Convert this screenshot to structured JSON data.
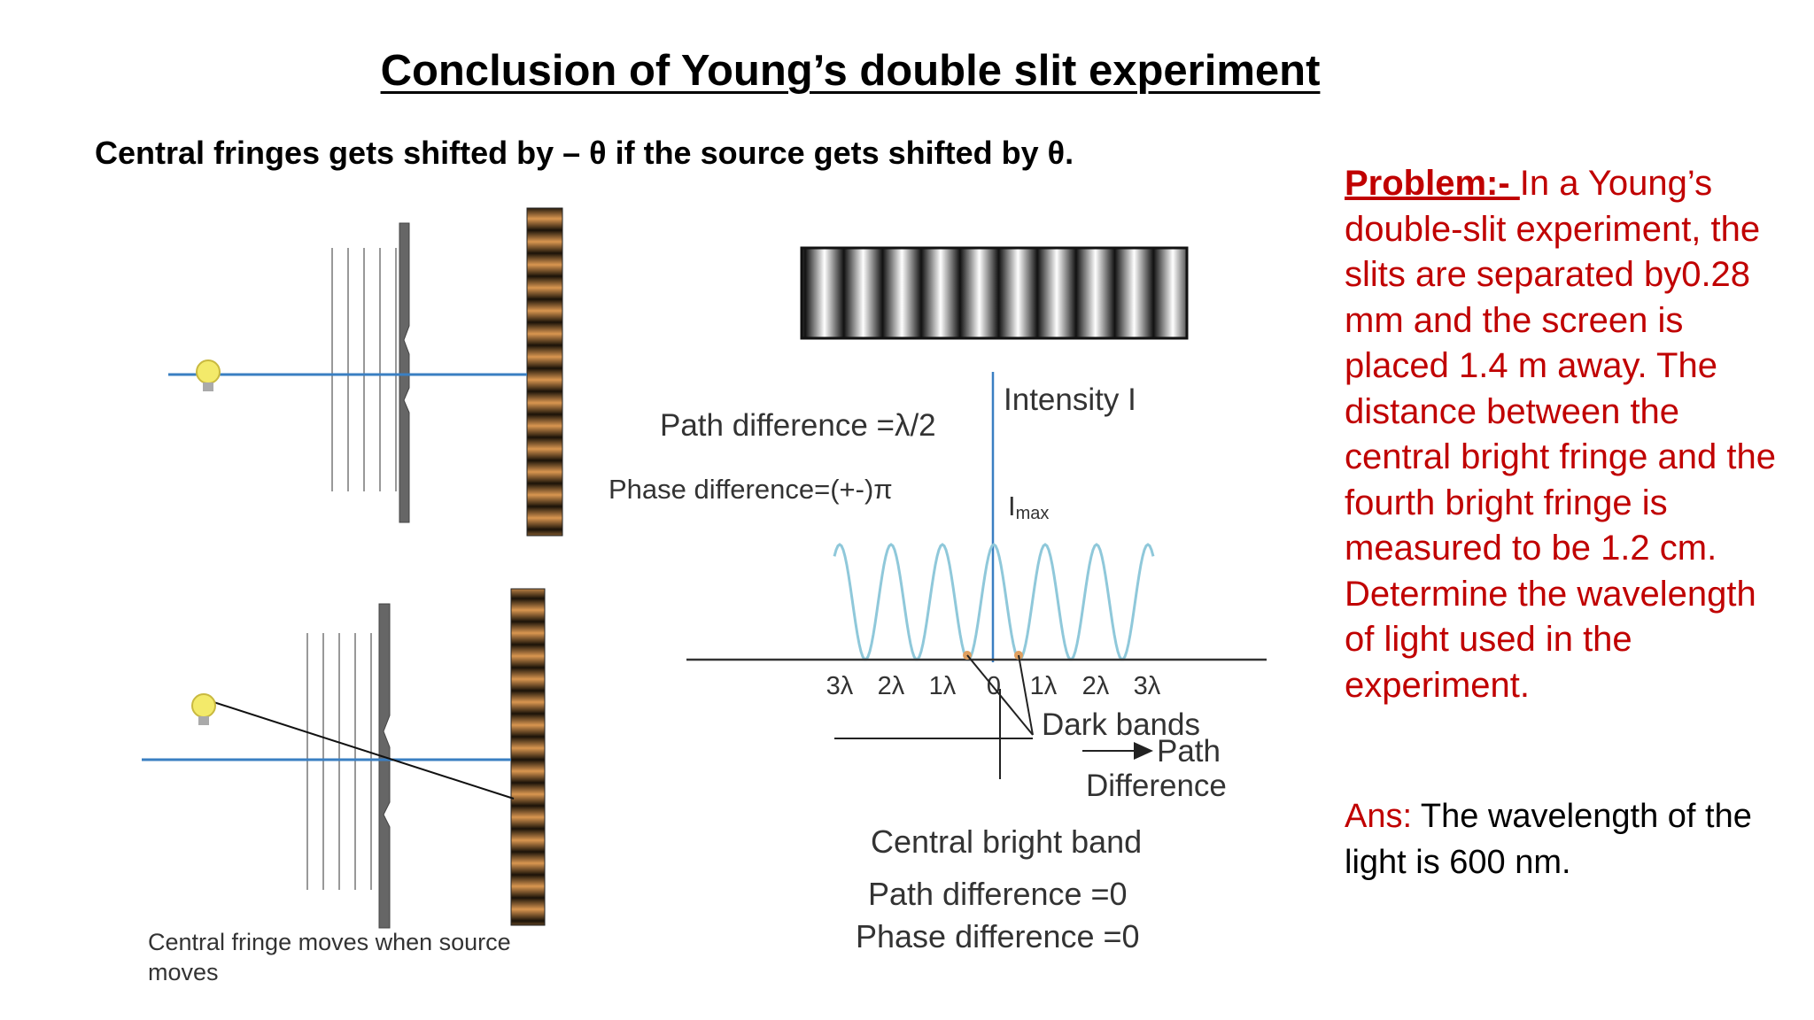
{
  "title": "Conclusion of Young’s double slit experiment",
  "subtitle": "Central fringes gets shifted by – θ if the source gets shifted by θ.",
  "problem": {
    "label": "Problem:- ",
    "text": "In a Young’s double-slit experiment, the slits are separated by0.28 mm and the screen is placed 1.4 m away. The distance between the central bright fringe and the fourth bright fringe is measured to be 1.2 cm. Determine the wavelength of light used in the experiment."
  },
  "answer": {
    "label": "Ans:",
    "text": " The wavelength of the light is 600 nm."
  },
  "left_diagram": {
    "caption_line1": "Central fringe moves when source",
    "caption_line2": "moves"
  },
  "intensity_diagram": {
    "path_diff_half": "Path difference =λ/2",
    "phase_diff_pi": "Phase difference=(+-)π",
    "intensity_label": "Intensity I",
    "imax_I": "I",
    "imax_sub": "max",
    "ticks": [
      "3λ",
      "2λ",
      "1λ",
      "0",
      "1λ",
      "2λ",
      "3λ"
    ],
    "dark_bands": "Dark bands",
    "path_label": "Path",
    "difference_label": "Difference",
    "central_bright": "Central bright band",
    "path_diff_zero": "Path difference =0",
    "phase_diff_zero": "Phase difference =0"
  },
  "colors": {
    "red": "#c00000",
    "blue_line": "#3a7fc2",
    "curve": "#8fc8da",
    "fringe_orange": "#d99650",
    "fringe_dark": "#1a1208",
    "bulb": "#f3ea6a"
  }
}
